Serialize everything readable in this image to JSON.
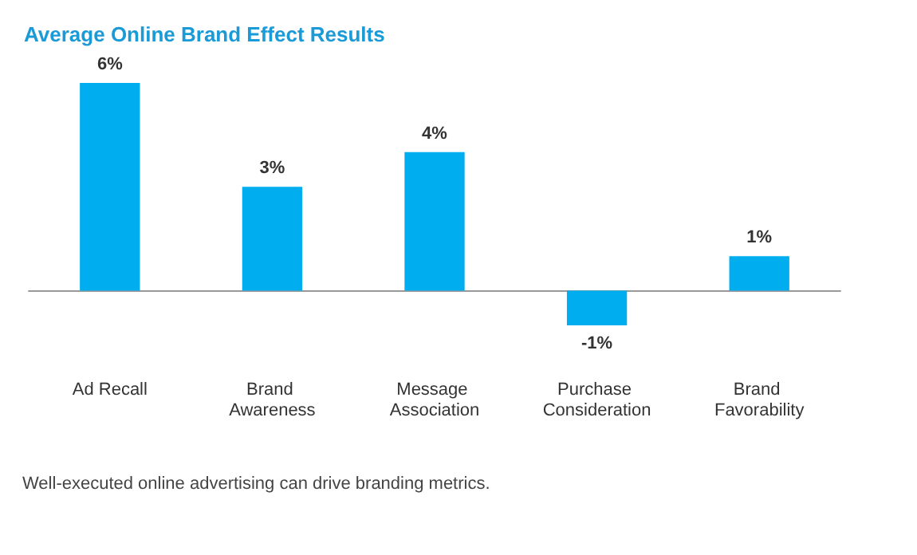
{
  "chart_data": {
    "type": "bar",
    "title": "Average Online Brand Effect Results",
    "categories": [
      "Ad Recall",
      "Brand Awareness",
      "Message Association",
      "Purchase Consideration",
      "Brand Favorability"
    ],
    "values": [
      6,
      3,
      4,
      -1,
      1
    ],
    "value_labels": [
      "6%",
      "3%",
      "4%",
      "-1%",
      "1%"
    ],
    "color": "#00aeef",
    "annotations": [
      "Well-executed online advertising can drive branding metrics."
    ]
  }
}
